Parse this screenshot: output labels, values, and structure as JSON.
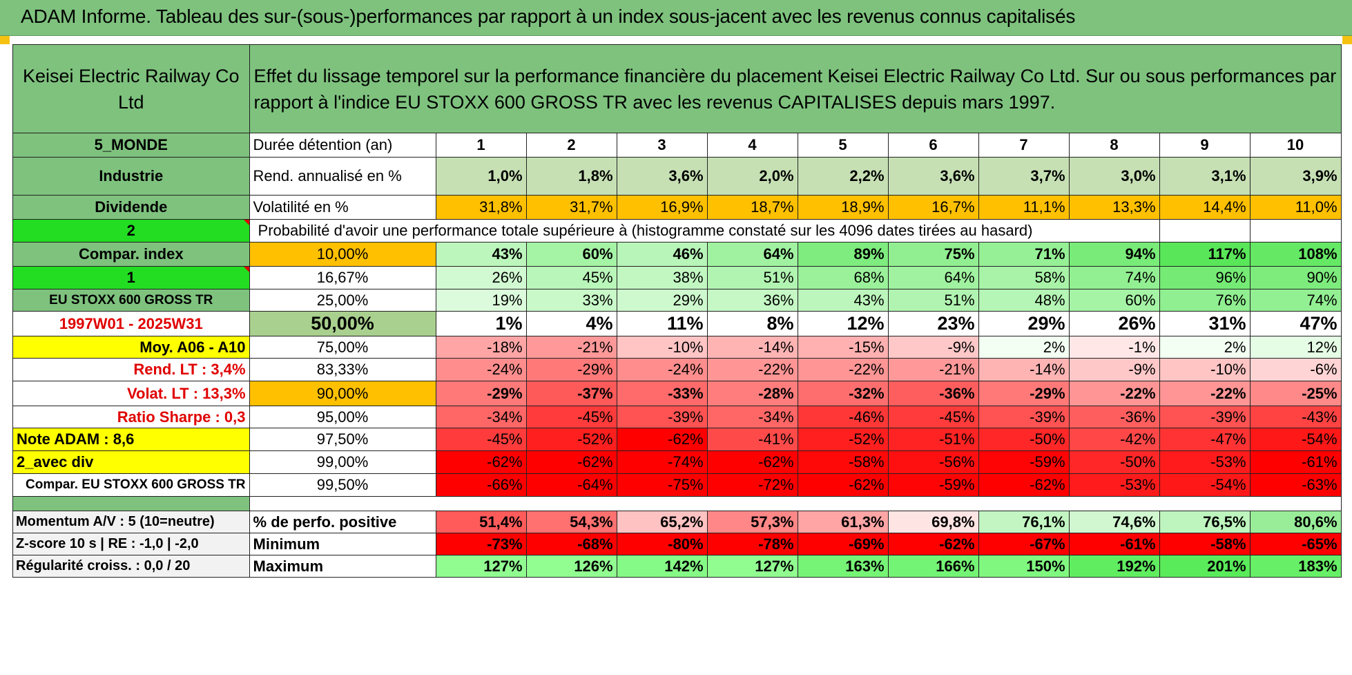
{
  "banner": {
    "title": "ADAM Informe. Tableau des sur-(sous-)performances par rapport à un index sous-jacent avec les revenus connus capitalisés"
  },
  "header": {
    "company": "Keisei Electric Railway Co Ltd",
    "description": "Effet du lissage temporel sur la performance financière du placement Keisei Electric Railway Co Ltd. Sur ou sous performances par rapport à l'indice EU STOXX 600 GROSS TR avec les revenus CAPITALISES depuis mars 1997."
  },
  "left": {
    "zone": "5_MONDE",
    "sector": "Industrie",
    "dividend": "Dividende",
    "sel1": "2",
    "compar_index": "Compar. index",
    "sel2": "1",
    "index_name": "EU STOXX 600 GROSS TR",
    "period": "1997W01 - 2025W31",
    "moy": "Moy. A06 - A10",
    "rend_lt": "Rend. LT :    3,4%",
    "volat_lt": "Volat. LT :    13,3%",
    "sharpe": "Ratio Sharpe :     0,3",
    "note": "Note ADAM : 8,6",
    "avec_div": "2_avec div",
    "compar_long": "Compar. EU STOXX 600 GROSS TR",
    "momentum": "Momentum A/V : 5 (10=neutre)",
    "zscore": "Z-score 10 s | RE : -1,0 | -2,0",
    "regularite": "Régularité croiss. : 0,0 / 20"
  },
  "labels": {
    "duree": "Durée détention (an)",
    "rend": "Rend. annualisé en %",
    "vol": "Volatilité en %",
    "proba": "Probabilité d'avoir une performance totale supérieure à (histogramme constaté sur les 4096 dates tirées au hasard)",
    "pos": "% de perfo. positive",
    "min": "Minimum",
    "max": "Maximum"
  },
  "years": [
    "1",
    "2",
    "3",
    "4",
    "5",
    "6",
    "7",
    "8",
    "9",
    "10"
  ],
  "rend": [
    "1,0%",
    "1,8%",
    "3,6%",
    "2,0%",
    "2,2%",
    "3,6%",
    "3,7%",
    "3,0%",
    "3,1%",
    "3,9%"
  ],
  "vol": [
    "31,8%",
    "31,7%",
    "16,9%",
    "18,7%",
    "18,9%",
    "16,7%",
    "11,1%",
    "13,3%",
    "14,4%",
    "11,0%"
  ],
  "prob_rows": [
    {
      "pct": "10,00%",
      "vals": [
        "43%",
        "60%",
        "46%",
        "64%",
        "89%",
        "75%",
        "71%",
        "94%",
        "117%",
        "108%"
      ]
    },
    {
      "pct": "16,67%",
      "vals": [
        "26%",
        "45%",
        "38%",
        "51%",
        "68%",
        "64%",
        "58%",
        "74%",
        "96%",
        "90%"
      ]
    },
    {
      "pct": "25,00%",
      "vals": [
        "19%",
        "33%",
        "29%",
        "36%",
        "43%",
        "51%",
        "48%",
        "60%",
        "76%",
        "74%"
      ]
    },
    {
      "pct": "50,00%",
      "vals": [
        "1%",
        "4%",
        "11%",
        "8%",
        "12%",
        "23%",
        "29%",
        "26%",
        "31%",
        "47%"
      ]
    },
    {
      "pct": "75,00%",
      "vals": [
        "-18%",
        "-21%",
        "-10%",
        "-14%",
        "-15%",
        "-9%",
        "2%",
        "-1%",
        "2%",
        "12%"
      ]
    },
    {
      "pct": "83,33%",
      "vals": [
        "-24%",
        "-29%",
        "-24%",
        "-22%",
        "-22%",
        "-21%",
        "-14%",
        "-9%",
        "-10%",
        "-6%"
      ]
    },
    {
      "pct": "90,00%",
      "vals": [
        "-29%",
        "-37%",
        "-33%",
        "-28%",
        "-32%",
        "-36%",
        "-29%",
        "-22%",
        "-22%",
        "-25%"
      ]
    },
    {
      "pct": "95,00%",
      "vals": [
        "-34%",
        "-45%",
        "-39%",
        "-34%",
        "-46%",
        "-45%",
        "-39%",
        "-36%",
        "-39%",
        "-43%"
      ]
    },
    {
      "pct": "97,50%",
      "vals": [
        "-45%",
        "-52%",
        "-62%",
        "-41%",
        "-52%",
        "-51%",
        "-50%",
        "-42%",
        "-47%",
        "-54%"
      ]
    },
    {
      "pct": "99,00%",
      "vals": [
        "-62%",
        "-62%",
        "-74%",
        "-62%",
        "-58%",
        "-56%",
        "-59%",
        "-50%",
        "-53%",
        "-61%"
      ]
    },
    {
      "pct": "99,50%",
      "vals": [
        "-66%",
        "-64%",
        "-75%",
        "-72%",
        "-62%",
        "-59%",
        "-62%",
        "-53%",
        "-54%",
        "-63%"
      ]
    }
  ],
  "pos": [
    "51,4%",
    "54,3%",
    "65,2%",
    "57,3%",
    "61,3%",
    "69,8%",
    "76,1%",
    "74,6%",
    "76,5%",
    "80,6%"
  ],
  "min": [
    "-73%",
    "-68%",
    "-80%",
    "-78%",
    "-69%",
    "-62%",
    "-67%",
    "-61%",
    "-58%",
    "-65%"
  ],
  "max": [
    "127%",
    "126%",
    "142%",
    "127%",
    "163%",
    "166%",
    "150%",
    "192%",
    "201%",
    "183%"
  ],
  "colors": {
    "header_green": "#7ec27e",
    "bright_green": "#22dd22",
    "yellow": "#ffff00",
    "orange": "#ffc000",
    "red_text": "#e00000"
  }
}
